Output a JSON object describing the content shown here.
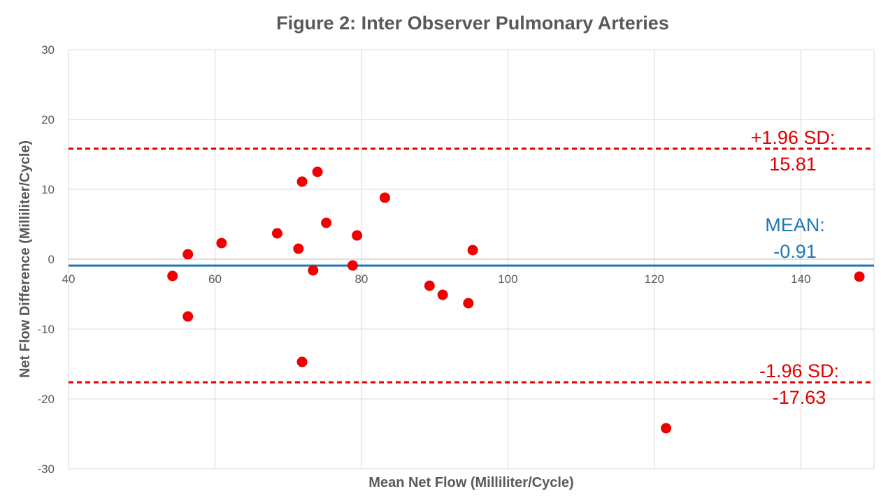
{
  "chart_data": {
    "type": "scatter",
    "title": "Figure 2: Inter Observer Pulmonary Arteries",
    "xlabel": "Mean Net Flow (Milliliter/Cycle)",
    "ylabel": "Net Flow Difference (Milliliter/Cycle)",
    "xlim": [
      40,
      150
    ],
    "ylim": [
      -30,
      30
    ],
    "x_ticks": [
      40,
      60,
      80,
      100,
      120,
      140
    ],
    "y_ticks": [
      -30,
      -20,
      -10,
      0,
      10,
      20,
      30
    ],
    "grid": true,
    "points": [
      {
        "x": 54.2,
        "y": -2.4
      },
      {
        "x": 56.3,
        "y": 0.7
      },
      {
        "x": 56.3,
        "y": -8.2
      },
      {
        "x": 60.9,
        "y": 2.3
      },
      {
        "x": 68.5,
        "y": 3.7
      },
      {
        "x": 71.4,
        "y": 1.5
      },
      {
        "x": 71.9,
        "y": 11.1
      },
      {
        "x": 71.9,
        "y": -14.7
      },
      {
        "x": 73.4,
        "y": -1.6
      },
      {
        "x": 74.0,
        "y": 12.5
      },
      {
        "x": 75.2,
        "y": 5.2
      },
      {
        "x": 78.8,
        "y": -0.9
      },
      {
        "x": 79.4,
        "y": 3.4
      },
      {
        "x": 83.2,
        "y": 8.8
      },
      {
        "x": 89.3,
        "y": -3.8
      },
      {
        "x": 91.1,
        "y": -5.1
      },
      {
        "x": 94.6,
        "y": -6.3
      },
      {
        "x": 95.2,
        "y": 1.3
      },
      {
        "x": 121.6,
        "y": -24.2
      },
      {
        "x": 148.0,
        "y": -2.5
      }
    ],
    "mean_line": {
      "value": -0.91,
      "label": [
        "MEAN:",
        "-0.91"
      ],
      "color": "#1f77b4"
    },
    "upper_loa": {
      "value": 15.81,
      "label": [
        "+1.96 SD:",
        "15.81"
      ],
      "color": "#e00000"
    },
    "lower_loa": {
      "value": -17.63,
      "label": [
        "-1.96 SD:",
        "-17.63"
      ],
      "color": "#e00000"
    },
    "point_color": "#f00000"
  }
}
